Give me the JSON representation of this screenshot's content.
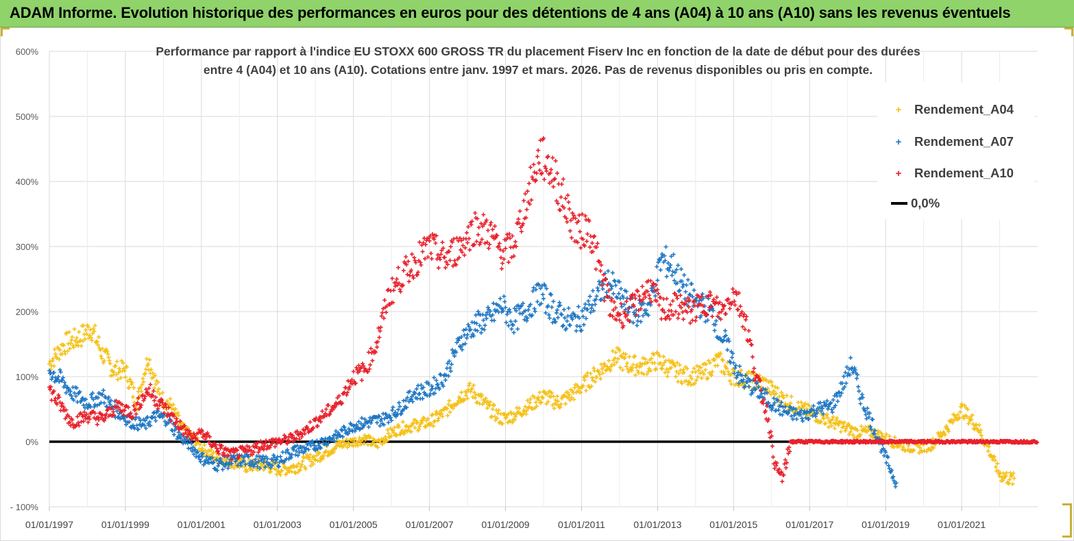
{
  "banner": {
    "title": "ADAM Informe. Evolution historique des performances en euros pour des détentions de 4 ans (A04) à 10 ans (A10) sans les revenus éventuels",
    "color": "#8fd36a"
  },
  "chart_data": {
    "type": "scatter",
    "title_line1": "Performance par rapport à l'indice EU STOXX 600 GROSS TR  du placement Fiserv Inc en fonction de la  date de début pour des durées",
    "title_line2": "entre 4 (A04) et 10 ans (A10). Cotations entre janv. 1997 et mars. 2026. Pas de revenus disponibles ou pris en compte.",
    "xlabel": "",
    "ylabel": "",
    "ylim": [
      -100,
      600
    ],
    "xlim": [
      1997.0,
      2023.0
    ],
    "grid": true,
    "y_ticks": [
      {
        "value": 600,
        "label": "600%"
      },
      {
        "value": 500,
        "label": "500%"
      },
      {
        "value": 400,
        "label": "400%"
      },
      {
        "value": 300,
        "label": "300%"
      },
      {
        "value": 200,
        "label": "200%"
      },
      {
        "value": 100,
        "label": "100%"
      },
      {
        "value": 0,
        "label": "0%"
      },
      {
        "value": -100,
        "label": "- 100%"
      }
    ],
    "x_ticks": [
      {
        "value": 1997.0,
        "label": "01/01/1997"
      },
      {
        "value": 1999.0,
        "label": "01/01/1999"
      },
      {
        "value": 2001.0,
        "label": "01/01/2001"
      },
      {
        "value": 2003.0,
        "label": "01/01/2003"
      },
      {
        "value": 2005.0,
        "label": "01/01/2005"
      },
      {
        "value": 2007.0,
        "label": "01/01/2007"
      },
      {
        "value": 2009.0,
        "label": "01/01/2009"
      },
      {
        "value": 2011.0,
        "label": "01/01/2011"
      },
      {
        "value": 2013.0,
        "label": "01/01/2013"
      },
      {
        "value": 2015.0,
        "label": "01/01/2015"
      },
      {
        "value": 2017.0,
        "label": "01/01/2017"
      },
      {
        "value": 2019.0,
        "label": "01/01/2019"
      },
      {
        "value": 2021.0,
        "label": "01/01/2021"
      }
    ],
    "legend_position": "top-right",
    "series": [
      {
        "name": "Rendement_A04",
        "color": "#f5c118",
        "marker": "+",
        "points": [
          [
            1997.0,
            120
          ],
          [
            1997.4,
            150
          ],
          [
            1997.8,
            160
          ],
          [
            1998.1,
            175
          ],
          [
            1998.4,
            135
          ],
          [
            1998.7,
            110
          ],
          [
            1999.0,
            110
          ],
          [
            1999.3,
            60
          ],
          [
            1999.6,
            130
          ],
          [
            1999.9,
            70
          ],
          [
            2000.2,
            55
          ],
          [
            2000.5,
            20
          ],
          [
            2000.8,
            5
          ],
          [
            2001.0,
            -10
          ],
          [
            2001.4,
            -25
          ],
          [
            2001.8,
            -30
          ],
          [
            2002.2,
            -38
          ],
          [
            2002.6,
            -35
          ],
          [
            2003.0,
            -42
          ],
          [
            2003.4,
            -40
          ],
          [
            2003.8,
            -30
          ],
          [
            2004.2,
            -18
          ],
          [
            2004.6,
            -5
          ],
          [
            2005.0,
            0
          ],
          [
            2005.3,
            5
          ],
          [
            2005.6,
            -5
          ],
          [
            2005.9,
            10
          ],
          [
            2006.2,
            20
          ],
          [
            2006.6,
            25
          ],
          [
            2007.0,
            30
          ],
          [
            2007.4,
            45
          ],
          [
            2007.8,
            70
          ],
          [
            2008.1,
            80
          ],
          [
            2008.5,
            55
          ],
          [
            2008.9,
            35
          ],
          [
            2009.2,
            40
          ],
          [
            2009.6,
            55
          ],
          [
            2010.0,
            70
          ],
          [
            2010.4,
            60
          ],
          [
            2010.8,
            75
          ],
          [
            2011.1,
            90
          ],
          [
            2011.5,
            110
          ],
          [
            2011.9,
            130
          ],
          [
            2012.2,
            120
          ],
          [
            2012.6,
            115
          ],
          [
            2013.0,
            125
          ],
          [
            2013.4,
            110
          ],
          [
            2013.8,
            100
          ],
          [
            2014.2,
            105
          ],
          [
            2014.6,
            125
          ],
          [
            2015.0,
            100
          ],
          [
            2015.4,
            95
          ],
          [
            2015.8,
            90
          ],
          [
            2016.2,
            70
          ],
          [
            2016.6,
            55
          ],
          [
            2017.0,
            45
          ],
          [
            2017.4,
            35
          ],
          [
            2017.8,
            25
          ],
          [
            2018.2,
            15
          ],
          [
            2018.6,
            15
          ],
          [
            2019.0,
            5
          ],
          [
            2019.4,
            -5
          ],
          [
            2019.8,
            -10
          ],
          [
            2020.2,
            -5
          ],
          [
            2020.6,
            20
          ],
          [
            2021.0,
            50
          ],
          [
            2021.4,
            25
          ],
          [
            2021.7,
            -10
          ],
          [
            2022.0,
            -50
          ],
          [
            2022.4,
            -60
          ]
        ]
      },
      {
        "name": "Rendement_A07",
        "color": "#1f77c4",
        "marker": "+",
        "points": [
          [
            1997.0,
            110
          ],
          [
            1997.3,
            95
          ],
          [
            1997.6,
            75
          ],
          [
            1998.0,
            60
          ],
          [
            1998.4,
            70
          ],
          [
            1998.8,
            45
          ],
          [
            1999.2,
            30
          ],
          [
            1999.5,
            25
          ],
          [
            1999.8,
            40
          ],
          [
            2000.1,
            35
          ],
          [
            2000.4,
            10
          ],
          [
            2000.7,
            -5
          ],
          [
            2001.0,
            -25
          ],
          [
            2001.4,
            -35
          ],
          [
            2001.8,
            -30
          ],
          [
            2002.2,
            -28
          ],
          [
            2002.6,
            -32
          ],
          [
            2003.0,
            -30
          ],
          [
            2003.4,
            -15
          ],
          [
            2003.8,
            -10
          ],
          [
            2004.2,
            0
          ],
          [
            2004.6,
            10
          ],
          [
            2005.0,
            25
          ],
          [
            2005.4,
            30
          ],
          [
            2005.8,
            35
          ],
          [
            2006.2,
            50
          ],
          [
            2006.6,
            75
          ],
          [
            2007.0,
            80
          ],
          [
            2007.4,
            100
          ],
          [
            2007.8,
            155
          ],
          [
            2008.2,
            180
          ],
          [
            2008.6,
            190
          ],
          [
            2008.9,
            210
          ],
          [
            2009.2,
            185
          ],
          [
            2009.6,
            205
          ],
          [
            2009.9,
            230
          ],
          [
            2010.3,
            200
          ],
          [
            2010.7,
            185
          ],
          [
            2011.0,
            190
          ],
          [
            2011.3,
            215
          ],
          [
            2011.7,
            245
          ],
          [
            2012.0,
            225
          ],
          [
            2012.4,
            195
          ],
          [
            2012.8,
            210
          ],
          [
            2013.1,
            280
          ],
          [
            2013.4,
            270
          ],
          [
            2013.7,
            235
          ],
          [
            2014.0,
            215
          ],
          [
            2014.4,
            200
          ],
          [
            2014.8,
            150
          ],
          [
            2015.2,
            95
          ],
          [
            2015.6,
            80
          ],
          [
            2016.0,
            60
          ],
          [
            2016.4,
            45
          ],
          [
            2016.8,
            40
          ],
          [
            2017.2,
            50
          ],
          [
            2017.6,
            55
          ],
          [
            2017.9,
            90
          ],
          [
            2018.1,
            120
          ],
          [
            2018.4,
            60
          ],
          [
            2018.7,
            20
          ],
          [
            2019.0,
            -25
          ],
          [
            2019.3,
            -65
          ]
        ]
      },
      {
        "name": "Rendement_A10",
        "color": "#e8202a",
        "marker": "+",
        "points": [
          [
            1997.0,
            80
          ],
          [
            1997.3,
            55
          ],
          [
            1997.6,
            30
          ],
          [
            1998.0,
            40
          ],
          [
            1998.4,
            35
          ],
          [
            1998.8,
            55
          ],
          [
            1999.2,
            45
          ],
          [
            1999.6,
            80
          ],
          [
            1999.9,
            60
          ],
          [
            2000.2,
            40
          ],
          [
            2000.5,
            20
          ],
          [
            2000.8,
            5
          ],
          [
            2001.0,
            15
          ],
          [
            2001.4,
            -10
          ],
          [
            2001.8,
            -20
          ],
          [
            2002.2,
            -15
          ],
          [
            2002.6,
            -5
          ],
          [
            2003.0,
            0
          ],
          [
            2003.4,
            5
          ],
          [
            2003.8,
            20
          ],
          [
            2004.2,
            40
          ],
          [
            2004.6,
            60
          ],
          [
            2005.0,
            100
          ],
          [
            2005.3,
            110
          ],
          [
            2005.6,
            150
          ],
          [
            2005.9,
            220
          ],
          [
            2006.2,
            250
          ],
          [
            2006.6,
            275
          ],
          [
            2007.0,
            300
          ],
          [
            2007.4,
            280
          ],
          [
            2007.8,
            300
          ],
          [
            2008.2,
            330
          ],
          [
            2008.6,
            320
          ],
          [
            2008.9,
            290
          ],
          [
            2009.2,
            300
          ],
          [
            2009.6,
            380
          ],
          [
            2009.9,
            440
          ],
          [
            2010.2,
            420
          ],
          [
            2010.6,
            360
          ],
          [
            2010.9,
            320
          ],
          [
            2011.2,
            330
          ],
          [
            2011.5,
            260
          ],
          [
            2011.8,
            200
          ],
          [
            2012.1,
            195
          ],
          [
            2012.4,
            210
          ],
          [
            2012.8,
            240
          ],
          [
            2013.1,
            200
          ],
          [
            2013.5,
            210
          ],
          [
            2013.9,
            200
          ],
          [
            2014.3,
            215
          ],
          [
            2014.7,
            200
          ],
          [
            2015.0,
            230
          ],
          [
            2015.3,
            190
          ],
          [
            2015.6,
            100
          ],
          [
            2015.9,
            40
          ],
          [
            2016.1,
            -40
          ],
          [
            2016.3,
            -55
          ],
          [
            2016.5,
            0
          ],
          [
            2017.0,
            0
          ],
          [
            2018.0,
            0
          ],
          [
            2019.0,
            0
          ],
          [
            2020.0,
            0
          ],
          [
            2021.0,
            0
          ],
          [
            2022.0,
            0
          ],
          [
            2023.0,
            0
          ]
        ]
      },
      {
        "name": "0,0%",
        "color": "#000000",
        "marker": "line",
        "points": [
          [
            1997.0,
            0
          ],
          [
            2023.0,
            0
          ]
        ]
      }
    ]
  }
}
